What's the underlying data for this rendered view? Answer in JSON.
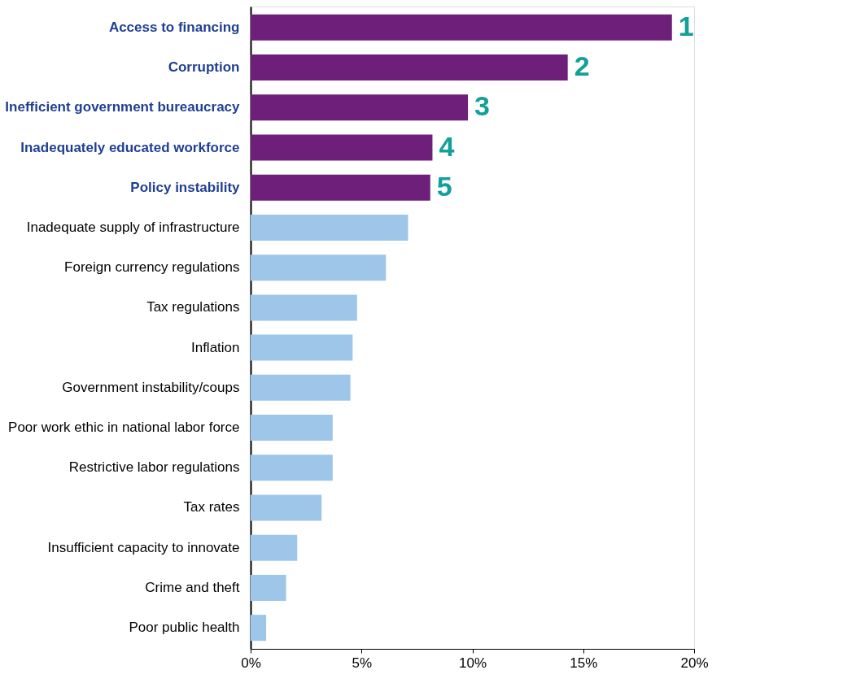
{
  "chart_data": {
    "type": "bar",
    "orientation": "horizontal",
    "categories": [
      "Access to financing",
      "Corruption",
      "Inefficient government bureaucracy",
      "Inadequately educated workforce",
      "Policy instability",
      "Inadequate supply of infrastructure",
      "Foreign currency regulations",
      "Tax regulations",
      "Inflation",
      "Government instability/coups",
      "Poor work ethic in national labor force",
      "Restrictive labor regulations",
      "Tax rates",
      "Insufficient capacity to innovate",
      "Crime and theft",
      "Poor public health"
    ],
    "values": [
      19.0,
      14.3,
      9.8,
      8.2,
      8.1,
      7.1,
      6.1,
      4.8,
      4.6,
      4.5,
      3.7,
      3.7,
      3.2,
      2.1,
      1.6,
      0.7
    ],
    "colors": [
      "#6d1f7a",
      "#6d1f7a",
      "#6d1f7a",
      "#6d1f7a",
      "#6d1f7a",
      "#9dc6e9",
      "#9dc6e9",
      "#9dc6e9",
      "#9dc6e9",
      "#9dc6e9",
      "#9dc6e9",
      "#9dc6e9",
      "#9dc6e9",
      "#9dc6e9",
      "#9dc6e9",
      "#9dc6e9"
    ],
    "annotations": [
      {
        "text": "1",
        "x": 19.0,
        "y": "Access to financing"
      },
      {
        "text": "2",
        "x": 14.3,
        "y": "Corruption"
      },
      {
        "text": "3",
        "x": 9.8,
        "y": "Inefficient government bureaucracy"
      },
      {
        "text": "4",
        "x": 8.2,
        "y": "Inadequately educated workforce"
      },
      {
        "text": "5",
        "x": 8.1,
        "y": "Policy instability"
      }
    ],
    "xlim": [
      0,
      20
    ],
    "xticks": [
      {
        "value": 0,
        "label": "0%"
      },
      {
        "value": 5,
        "label": "5%"
      },
      {
        "value": 10,
        "label": "10%"
      },
      {
        "value": 15,
        "label": "15%"
      },
      {
        "value": 20,
        "label": "20%"
      }
    ],
    "grid": false
  }
}
